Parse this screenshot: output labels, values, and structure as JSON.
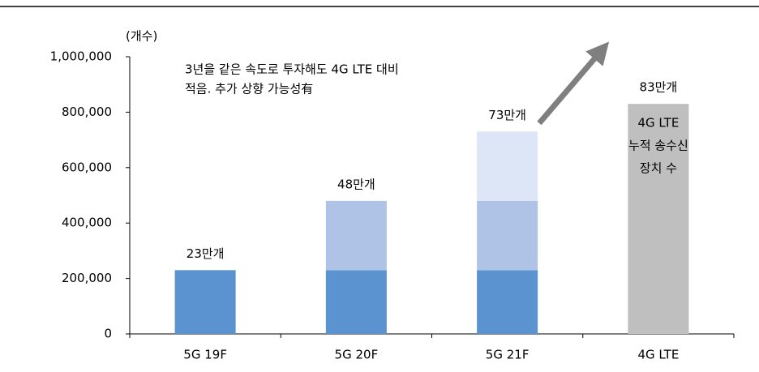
{
  "chart_data": {
    "type": "stacked_bar",
    "y_label": "(개수)",
    "categories": [
      "5G 19F",
      "5G 20F",
      "5G 21F",
      "4G LTE"
    ],
    "series": [
      {
        "color": "#5b93d0",
        "values": [
          230000,
          230000,
          230000,
          null
        ]
      },
      {
        "color": "#aec3e6",
        "values": [
          null,
          250000,
          250000,
          null
        ]
      },
      {
        "color": "#dde6f6",
        "values": [
          null,
          null,
          250000,
          null
        ]
      },
      {
        "color": "#bfbfbf",
        "values": [
          null,
          null,
          null,
          830000
        ]
      }
    ],
    "stack_labels": [
      "23만개",
      "48만개",
      "73만개",
      "83만개"
    ],
    "bar_text": [
      "4G LTE",
      "누적 송수신",
      "장치 수"
    ],
    "annotation": [
      "3년을 같은 속도로 투자해도 4G LTE 대비",
      "적음. 추가 상향 가능성有"
    ],
    "ylim": [
      0,
      1000000
    ],
    "yticks": [
      0,
      {
        "value": 200000,
        "label": "200,000"
      },
      {
        "value": 400000,
        "label": "400,000"
      },
      {
        "value": 600000,
        "label": "600,000"
      },
      {
        "value": 800000,
        "label": "800,000"
      },
      {
        "value": 1000000,
        "label": "1,000,000"
      }
    ]
  }
}
